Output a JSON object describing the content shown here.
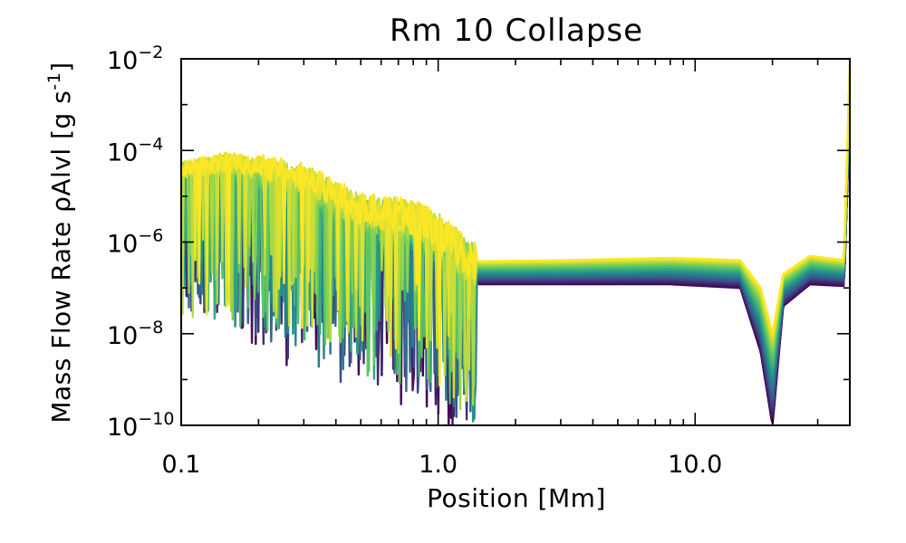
{
  "chart_data": {
    "type": "line",
    "title": "Rm 10 Collapse",
    "xlabel": "Position [Mm]",
    "ylabel": "Mass Flow Rate ρAlvl [g s⁻¹]",
    "ylabel_parts": {
      "main": "Mass Flow Rate ρAlvl [g s",
      "sup": "-1",
      "end": "]"
    },
    "x_scale": "log",
    "y_scale": "log",
    "xlim": [
      0.1,
      40.0
    ],
    "ylim": [
      1e-10,
      0.01
    ],
    "x_ticks": [
      {
        "value": 0.1,
        "label": "0.1"
      },
      {
        "value": 1.0,
        "label": "1.0"
      },
      {
        "value": 10.0,
        "label": "10.0"
      }
    ],
    "y_ticks": [
      {
        "value": 1e-10,
        "base": "10",
        "exp": "−10"
      },
      {
        "value": 1e-08,
        "base": "10",
        "exp": "−8"
      },
      {
        "value": 1e-06,
        "base": "10",
        "exp": "−6"
      },
      {
        "value": 0.0001,
        "base": "10",
        "exp": "−4"
      },
      {
        "value": 0.01,
        "base": "10",
        "exp": "−2"
      }
    ],
    "colormap": "viridis",
    "colormap_stops": [
      "#440154",
      "#3b528b",
      "#21918c",
      "#5ec962",
      "#fde725"
    ],
    "series_count": 40,
    "series_profile": {
      "description": "Family of profiles colored by time (purple early to yellow late)",
      "x": [
        0.1,
        0.15,
        0.2,
        0.3,
        0.5,
        0.8,
        1.0,
        1.3,
        1.45,
        3.0,
        8.0,
        15.0,
        18.0,
        20.0,
        22.0,
        28.0,
        38.0,
        40.0
      ],
      "y_first": [
        3e-05,
        3e-05,
        8e-06,
        5e-06,
        1e-06,
        8e-07,
        3e-07,
        1.5e-07,
        1.2e-07,
        1.2e-07,
        1.2e-07,
        1e-07,
        4e-09,
        1e-10,
        4e-08,
        1.2e-07,
        1.1e-07,
        0.001
      ],
      "y_last": [
        4e-05,
        6e-05,
        5e-05,
        3e-05,
        6e-06,
        4e-06,
        2e-06,
        5e-07,
        3.8e-07,
        4e-07,
        4.5e-07,
        4e-07,
        1e-07,
        1e-08,
        2e-07,
        5e-07,
        4e-07,
        0.008
      ]
    }
  }
}
